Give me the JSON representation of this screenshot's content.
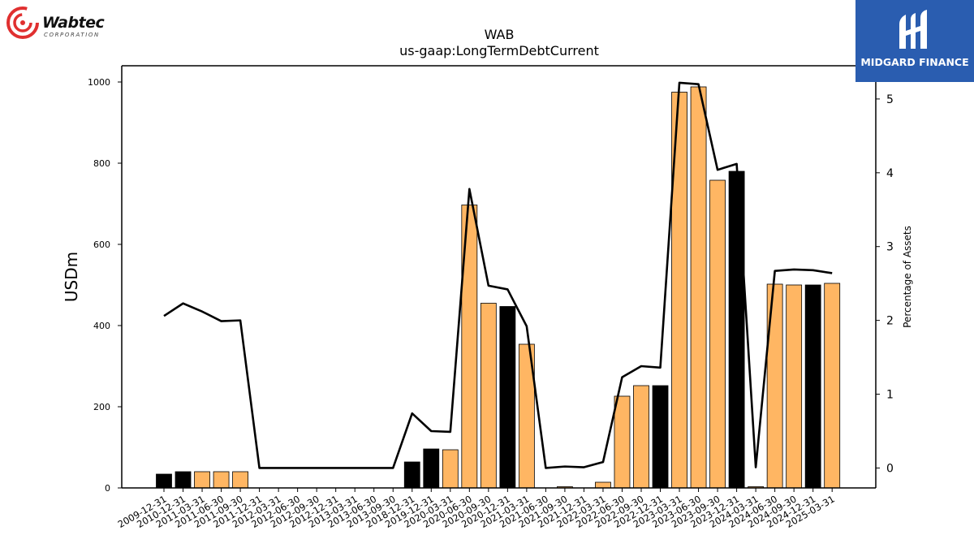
{
  "chart_data": {
    "type": "bar",
    "title": "WAB",
    "subtitle": "us-gaap:LongTermDebtCurrent",
    "ylabel": "USDm",
    "y2label": "Percentage of Assets",
    "ylim": [
      0,
      1040
    ],
    "y2lim": [
      -0.27,
      5.45
    ],
    "yticks": [
      0,
      200,
      400,
      600,
      800,
      1000
    ],
    "y2ticks": [
      0,
      1,
      2,
      3,
      4,
      5
    ],
    "categories": [
      "2009-12-31",
      "2010-12-31",
      "2011-03-31",
      "2011-06-30",
      "2011-09-30",
      "2011-12-31",
      "2012-03-31",
      "2012-06-30",
      "2012-09-30",
      "2012-12-31",
      "2013-03-31",
      "2013-06-30",
      "2013-09-30",
      "2018-12-31",
      "2019-12-31",
      "2020-03-31",
      "2020-06-30",
      "2020-09-30",
      "2020-12-31",
      "2021-03-31",
      "2021-06-30",
      "2021-09-30",
      "2021-12-31",
      "2022-03-31",
      "2022-06-30",
      "2022-09-30",
      "2022-12-31",
      "2023-03-31",
      "2023-06-30",
      "2023-09-30",
      "2023-12-31",
      "2024-03-31",
      "2024-06-30",
      "2024-09-30",
      "2024-12-31",
      "2025-03-31"
    ],
    "series": [
      {
        "values": [
          34,
          40,
          40,
          40,
          40,
          0,
          0,
          0,
          0,
          0,
          0,
          0,
          0,
          64,
          96,
          94,
          697,
          455,
          447,
          354,
          0,
          3,
          0,
          14,
          226,
          252,
          252,
          975,
          988,
          758,
          780,
          3,
          502,
          500,
          500,
          504
        ],
        "year_end": [
          true,
          true,
          false,
          false,
          false,
          true,
          false,
          false,
          false,
          true,
          false,
          false,
          false,
          true,
          true,
          false,
          false,
          false,
          true,
          false,
          false,
          false,
          true,
          false,
          false,
          false,
          true,
          false,
          false,
          false,
          true,
          false,
          false,
          false,
          true,
          false
        ]
      },
      {
        "values": [
          2.06,
          2.23,
          2.12,
          1.99,
          2.0,
          0.0,
          0.0,
          0.0,
          0.0,
          0.0,
          0.0,
          0.0,
          0.0,
          0.74,
          0.5,
          0.49,
          3.78,
          2.47,
          2.42,
          1.92,
          0.0,
          0.02,
          0.01,
          0.08,
          1.23,
          1.38,
          1.36,
          5.22,
          5.2,
          4.04,
          4.12,
          0.01,
          2.67,
          2.69,
          2.68,
          2.64
        ]
      }
    ],
    "colors": {
      "year_end_bar": "#000000",
      "quarter_bar": "#ffb663",
      "bar_edge": "#000000",
      "line": "#000000"
    },
    "grid": false
  },
  "logos": {
    "wabtec": {
      "name": "Wabtec",
      "tagline": "CORPORATION",
      "color": "#e03030"
    },
    "midgard": {
      "name": "MIDGARD FINANCE",
      "color": "#2a5db0"
    }
  }
}
